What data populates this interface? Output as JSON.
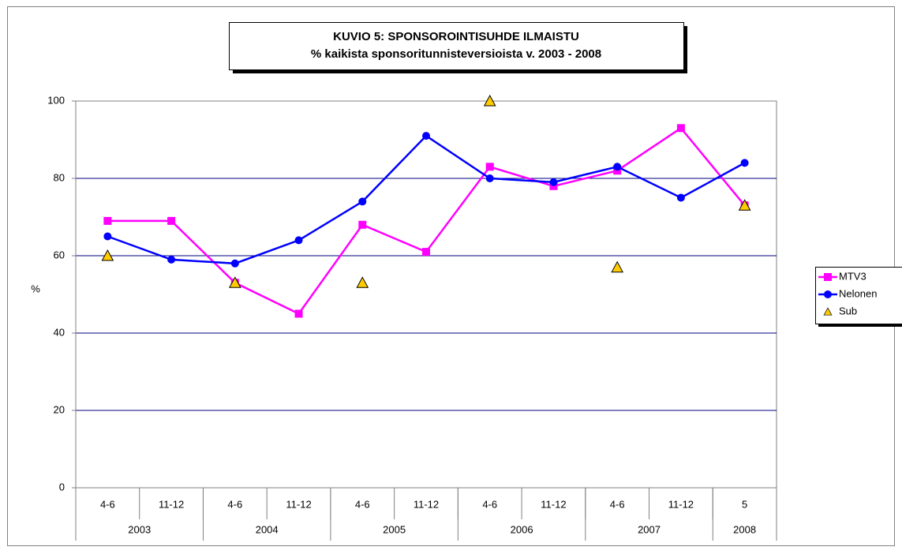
{
  "chart_data": {
    "type": "line",
    "title": [
      "KUVIO 5: SPONSOROINTISUHDE ILMAISTU",
      "% kaikista sponsoritunnisteversioista v. 2003 - 2008"
    ],
    "y_label": "%",
    "categories": [
      "4-6",
      "11-12",
      "4-6",
      "11-12",
      "4-6",
      "11-12",
      "4-6",
      "11-12",
      "4-6",
      "11-12",
      "5"
    ],
    "x_groups": [
      {
        "label": "2003",
        "count": 2
      },
      {
        "label": "2004",
        "count": 2
      },
      {
        "label": "2005",
        "count": 2
      },
      {
        "label": "2006",
        "count": 2
      },
      {
        "label": "2007",
        "count": 2
      },
      {
        "label": "2008",
        "count": 1
      }
    ],
    "series": [
      {
        "name": "MTV3",
        "color": "#ff00ff",
        "marker": "square",
        "line": true,
        "values": [
          69,
          69,
          53,
          45,
          68,
          61,
          83,
          78,
          82,
          93,
          73
        ]
      },
      {
        "name": "Nelonen",
        "color": "#0000ff",
        "marker": "circle",
        "line": true,
        "values": [
          65,
          59,
          58,
          64,
          74,
          91,
          80,
          79,
          83,
          75,
          84
        ]
      },
      {
        "name": "Sub",
        "color": "#ffcc00",
        "marker": "triangle",
        "line": false,
        "values": [
          60,
          null,
          53,
          null,
          53,
          null,
          100,
          null,
          57,
          null,
          73
        ]
      }
    ],
    "ylim": [
      0,
      100
    ],
    "yticks": [
      0,
      20,
      40,
      60,
      80,
      100
    ],
    "grid": true,
    "legend": "right"
  }
}
